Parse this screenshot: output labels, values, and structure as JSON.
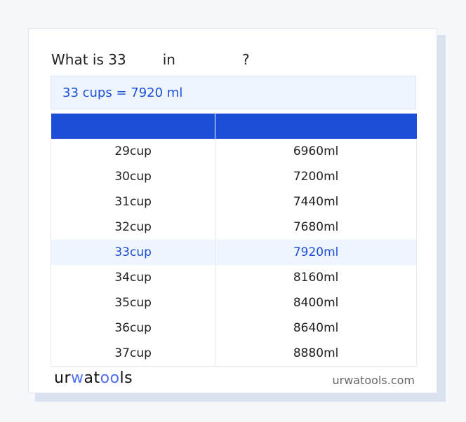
{
  "title": {
    "part1": "What is 33",
    "part2": "in",
    "part3": "?"
  },
  "result": "33 cups = 7920 ml",
  "table": {
    "headers": [
      "",
      ""
    ],
    "rows": [
      [
        "29cup",
        "6960ml"
      ],
      [
        "30cup",
        "7200ml"
      ],
      [
        "31cup",
        "7440ml"
      ],
      [
        "32cup",
        "7680ml"
      ],
      [
        "33cup",
        "7920ml"
      ],
      [
        "34cup",
        "8160ml"
      ],
      [
        "35cup",
        "8400ml"
      ],
      [
        "36cup",
        "8640ml"
      ],
      [
        "37cup",
        "8880ml"
      ]
    ],
    "highlighted_row": 4
  },
  "footer": {
    "logo": "urwatools",
    "site": "urwatools.com"
  },
  "colors": {
    "accent": "#1d4ed8",
    "highlight_bg": "#eef5ff"
  }
}
